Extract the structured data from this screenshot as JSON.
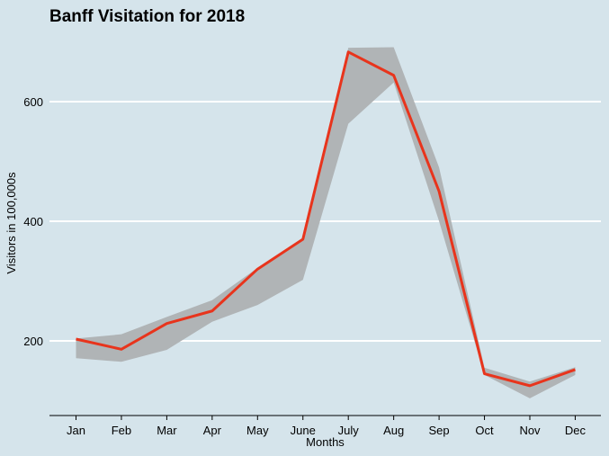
{
  "chart_data": {
    "type": "line",
    "title": "Banff Visitation for 2018",
    "xlabel": "Months",
    "ylabel": "Visitors in 100,000s",
    "categories": [
      "Jan",
      "Feb",
      "Mar",
      "Apr",
      "May",
      "June",
      "July",
      "Aug",
      "Sep",
      "Oct",
      "Nov",
      "Dec"
    ],
    "series": [
      {
        "values": [
          203,
          186,
          229,
          250,
          320,
          370,
          683,
          644,
          450,
          145,
          125,
          152
        ]
      }
    ],
    "band": {
      "lower": [
        171,
        165,
        185,
        232,
        260,
        302,
        563,
        632,
        400,
        143,
        104,
        143
      ],
      "upper": [
        204,
        211,
        240,
        268,
        322,
        369,
        690,
        691,
        490,
        155,
        132,
        156
      ]
    },
    "y_ticks": [
      200,
      400,
      600
    ],
    "ylim": [
      125,
      720
    ],
    "grid": true,
    "colors": {
      "background": "#d5e4eb",
      "line": "#e8341c",
      "band": "#b0b4b6",
      "grid": "#ffffff"
    }
  }
}
